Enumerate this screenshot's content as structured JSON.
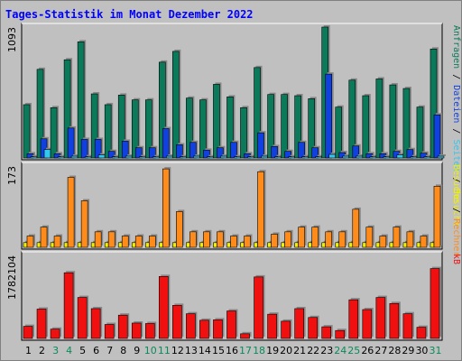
{
  "chart_data": {
    "type": "bar",
    "title": "Tages-Statistik im Monat Dezember 2022",
    "x": [
      1,
      2,
      3,
      4,
      5,
      6,
      7,
      8,
      9,
      10,
      11,
      12,
      13,
      14,
      15,
      16,
      17,
      18,
      19,
      20,
      21,
      22,
      23,
      24,
      25,
      26,
      27,
      28,
      29,
      30,
      31
    ],
    "weekend_days": [
      3,
      4,
      10,
      11,
      17,
      18,
      24,
      25,
      31
    ],
    "colors": {
      "background": "#c0c0c0",
      "title": "#0000ff",
      "anfragen": "#0a7a5a",
      "dateien": "#1040e0",
      "seiten": "#30c8f0",
      "besuche": "#f0f000",
      "rechner": "#ff8c1a",
      "kb": "#f01010",
      "weekend_label": "#0a8a5a",
      "weekday_label": "#000000"
    },
    "panels": [
      {
        "id": "requests",
        "ymax_label": "1093",
        "ymax": 1093,
        "right_label": [
          "Anfragen",
          " / ",
          "Dateien",
          " / ",
          "Seiten",
          " / ",
          "Besuche"
        ],
        "right_label_colors": [
          "#0a7a5a",
          "#000000",
          "#1040e0",
          "#000000",
          "#30c8f0",
          "#000000",
          "#f0f000"
        ],
        "series": [
          {
            "name": "Anfragen",
            "values": [
              445,
              740,
              420,
              820,
              970,
              535,
              445,
              525,
              485,
              485,
              800,
              890,
              500,
              485,
              615,
              510,
              420,
              755,
              530,
              530,
              520,
              495,
              1093,
              425,
              650,
              520,
              660,
              610,
              580,
              425,
              910
            ]
          },
          {
            "name": "Dateien",
            "values": [
              35,
              160,
              35,
              250,
              155,
              155,
              55,
              140,
              85,
              85,
              245,
              110,
              130,
              65,
              85,
              130,
              35,
              210,
              95,
              55,
              130,
              85,
              700,
              45,
              100,
              35,
              35,
              55,
              70,
              40,
              360
            ]
          },
          {
            "name": "Seiten",
            "values": [
              10,
              70,
              10,
              15,
              10,
              25,
              10,
              15,
              10,
              10,
              15,
              10,
              15,
              10,
              15,
              10,
              10,
              15,
              10,
              10,
              10,
              10,
              30,
              15,
              15,
              10,
              10,
              25,
              10,
              10,
              15
            ]
          }
        ]
      },
      {
        "id": "visits",
        "ymax_label": "173",
        "ymax": 173,
        "right_label": [
          "Besuche",
          " / ",
          "Rechner"
        ],
        "right_label_colors": [
          "#f0f000",
          "#000000",
          "#ff8c1a"
        ],
        "series": [
          {
            "name": "Besuche",
            "values": [
              10,
              10,
              10,
              10,
              10,
              10,
              10,
              10,
              10,
              10,
              10,
              10,
              10,
              10,
              10,
              10,
              10,
              10,
              10,
              10,
              10,
              10,
              10,
              10,
              10,
              10,
              10,
              10,
              10,
              10,
              10
            ]
          },
          {
            "name": "Rechner",
            "values": [
              24,
              43,
              24,
              149,
              99,
              33,
              33,
              24,
              24,
              24,
              167,
              76,
              33,
              33,
              33,
              24,
              24,
              161,
              28,
              33,
              43,
              43,
              33,
              33,
              81,
              43,
              24,
              43,
              33,
              24,
              130
            ]
          }
        ]
      },
      {
        "id": "traffic",
        "ymax_label": "1782104",
        "ymax": 1782104,
        "right_label": [
          "kB"
        ],
        "right_label_colors": [
          "#f01010"
        ],
        "series": [
          {
            "name": "kB",
            "values": [
              260000,
              630000,
              200000,
              1410000,
              880000,
              640000,
              300000,
              500000,
              330000,
              320000,
              1330000,
              710000,
              530000,
              390000,
              400000,
              590000,
              100000,
              1320000,
              520000,
              370000,
              640000,
              450000,
              250000,
              170000,
              830000,
              620000,
              880000,
              750000,
              530000,
              240000,
              1500000
            ]
          }
        ]
      }
    ]
  }
}
